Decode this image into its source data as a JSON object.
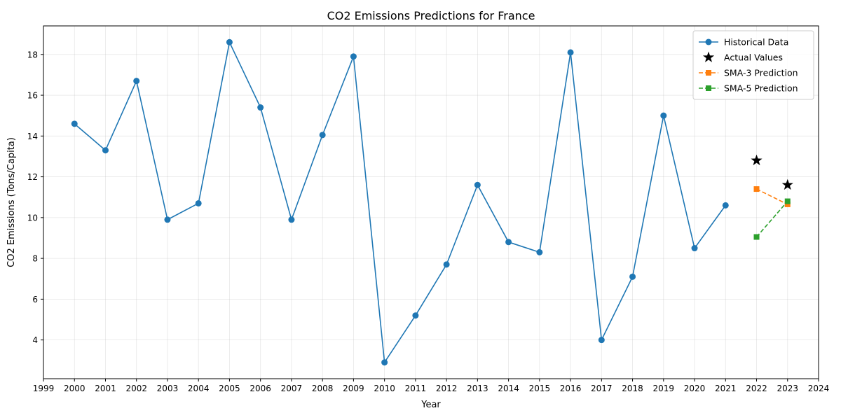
{
  "chart_data": {
    "type": "line",
    "title": "CO2 Emissions Predictions for France",
    "xlabel": "Year",
    "ylabel": "CO2 Emissions (Tons/Capita)",
    "xlim": [
      1999,
      2024
    ],
    "ylim": [
      2.1,
      19.4
    ],
    "xticks": [
      1999,
      2000,
      2001,
      2002,
      2003,
      2004,
      2005,
      2006,
      2007,
      2008,
      2009,
      2010,
      2011,
      2012,
      2013,
      2014,
      2015,
      2016,
      2017,
      2018,
      2019,
      2020,
      2021,
      2022,
      2023,
      2024
    ],
    "yticks": [
      4,
      6,
      8,
      10,
      12,
      14,
      16,
      18
    ],
    "grid": true,
    "legend_position": "top-right",
    "series": [
      {
        "name": "Historical Data",
        "style": "line-circle",
        "color": "#1f77b4",
        "x": [
          2000,
          2001,
          2002,
          2003,
          2004,
          2005,
          2006,
          2007,
          2008,
          2009,
          2010,
          2011,
          2012,
          2013,
          2014,
          2015,
          2016,
          2017,
          2018,
          2019,
          2020,
          2021
        ],
        "y": [
          14.6,
          13.3,
          16.7,
          9.9,
          10.7,
          18.6,
          15.4,
          9.9,
          14.05,
          17.9,
          2.9,
          5.2,
          7.7,
          11.6,
          8.8,
          8.3,
          18.1,
          4.0,
          7.1,
          15.0,
          8.5,
          10.6
        ]
      },
      {
        "name": "Actual Values",
        "style": "star",
        "color": "#000000",
        "x": [
          2022,
          2023
        ],
        "y": [
          12.8,
          11.6
        ]
      },
      {
        "name": "SMA-3 Prediction",
        "style": "dashed-square",
        "color": "#ff7f0e",
        "x": [
          2022,
          2023
        ],
        "y": [
          11.4,
          10.65
        ]
      },
      {
        "name": "SMA-5 Prediction",
        "style": "dashed-square",
        "color": "#2ca02c",
        "x": [
          2022,
          2023
        ],
        "y": [
          9.05,
          10.8
        ]
      }
    ]
  }
}
